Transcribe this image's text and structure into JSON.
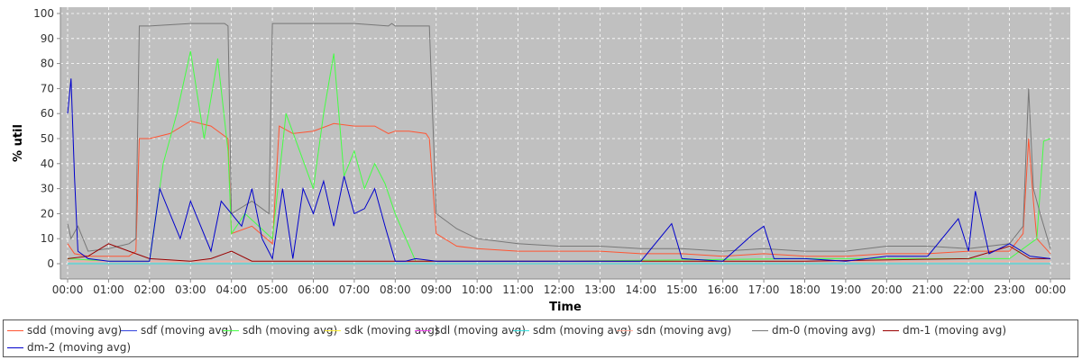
{
  "chart_data": {
    "type": "line",
    "title": "",
    "xlabel": "Time",
    "ylabel": "% util",
    "ylim": [
      0,
      100
    ],
    "xlim": [
      "00:00",
      "24:00"
    ],
    "grid": true,
    "legend_position": "bottom",
    "y_ticks": [
      "0",
      "10",
      "20",
      "30",
      "40",
      "50",
      "60",
      "70",
      "80",
      "90",
      "100"
    ],
    "x_ticks": [
      "00:00",
      "01:00",
      "02:00",
      "03:00",
      "04:00",
      "05:00",
      "06:00",
      "07:00",
      "08:00",
      "09:00",
      "10:00",
      "11:00",
      "12:00",
      "13:00",
      "14:00",
      "15:00",
      "16:00",
      "17:00",
      "18:00",
      "19:00",
      "20:00",
      "21:00",
      "22:00",
      "23:00",
      "00:00"
    ],
    "series": [
      {
        "name": "sdd (moving avg)",
        "color": "#ff5533",
        "x": [
          "00:00",
          "00:10",
          "00:30",
          "01:00",
          "01:30",
          "01:40",
          "01:45",
          "02:00",
          "02:30",
          "03:00",
          "03:30",
          "03:55",
          "04:00",
          "04:30",
          "05:00",
          "05:10",
          "05:30",
          "06:00",
          "06:30",
          "07:00",
          "07:30",
          "07:50",
          "08:00",
          "08:20",
          "08:45",
          "08:50",
          "09:00",
          "09:30",
          "10:00",
          "11:00",
          "12:00",
          "13:00",
          "14:00",
          "15:00",
          "16:00",
          "17:00",
          "18:00",
          "19:00",
          "20:00",
          "21:00",
          "22:00",
          "23:00",
          "23:20",
          "23:28",
          "23:35",
          "23:40",
          "24:00"
        ],
        "values": [
          8,
          4,
          3,
          3,
          3,
          5,
          50,
          50,
          52,
          57,
          55,
          50,
          12,
          15,
          8,
          55,
          52,
          53,
          56,
          55,
          55,
          52,
          53,
          53,
          52,
          50,
          12,
          7,
          6,
          5,
          5,
          5,
          4,
          4,
          3,
          4,
          3,
          3,
          4,
          4,
          5,
          5,
          12,
          50,
          25,
          10,
          4
        ]
      },
      {
        "name": "sdf (moving avg)",
        "color": "#3344dd",
        "x": [
          "00:00",
          "24:00"
        ],
        "values": [
          0,
          0
        ]
      },
      {
        "name": "sdh (moving avg)",
        "color": "#44ff44",
        "x": [
          "00:00",
          "01:00",
          "02:00",
          "02:20",
          "02:40",
          "03:00",
          "03:20",
          "03:40",
          "03:55",
          "04:00",
          "04:20",
          "04:40",
          "05:00",
          "05:20",
          "05:40",
          "06:00",
          "06:15",
          "06:30",
          "06:45",
          "07:00",
          "07:15",
          "07:30",
          "07:45",
          "08:00",
          "08:30",
          "09:00",
          "12:00",
          "18:00",
          "22:00",
          "23:00",
          "23:40",
          "23:50",
          "24:00"
        ],
        "values": [
          2,
          1,
          1,
          40,
          60,
          85,
          50,
          82,
          45,
          12,
          20,
          15,
          10,
          60,
          45,
          30,
          60,
          84,
          35,
          45,
          30,
          40,
          32,
          20,
          1,
          1,
          1,
          2,
          2,
          2,
          10,
          49,
          50
        ]
      },
      {
        "name": "sdk (moving avg)",
        "color": "#ffee33",
        "x": [
          "00:00",
          "24:00"
        ],
        "values": [
          0,
          0
        ]
      },
      {
        "name": "sdl (moving avg)",
        "color": "#ee44ee",
        "x": [
          "00:00",
          "24:00"
        ],
        "values": [
          0,
          0
        ]
      },
      {
        "name": "sdm (moving avg)",
        "color": "#33dddd",
        "x": [
          "00:00",
          "24:00"
        ],
        "values": [
          0,
          0
        ]
      },
      {
        "name": "sdn (moving avg)",
        "color": "#ffaa99",
        "x": [
          "00:00",
          "24:00"
        ],
        "values": [
          1,
          1
        ]
      },
      {
        "name": "dm-0 (moving avg)",
        "color": "#777777",
        "x": [
          "00:00",
          "00:05",
          "00:15",
          "00:30",
          "01:00",
          "01:30",
          "01:40",
          "01:45",
          "02:00",
          "03:00",
          "03:50",
          "03:55",
          "04:00",
          "04:30",
          "04:55",
          "05:00",
          "06:00",
          "07:00",
          "07:50",
          "07:55",
          "08:00",
          "08:30",
          "08:50",
          "09:00",
          "09:30",
          "10:00",
          "11:00",
          "12:00",
          "13:00",
          "14:00",
          "15:00",
          "16:00",
          "17:00",
          "18:00",
          "19:00",
          "20:00",
          "21:00",
          "22:00",
          "23:00",
          "23:20",
          "23:28",
          "23:35",
          "23:45",
          "24:00"
        ],
        "values": [
          16,
          10,
          15,
          5,
          6,
          8,
          10,
          95,
          95,
          96,
          96,
          95,
          20,
          25,
          20,
          96,
          96,
          96,
          95,
          96,
          95,
          95,
          95,
          20,
          14,
          10,
          8,
          7,
          7,
          6,
          6,
          5,
          6,
          5,
          5,
          7,
          7,
          6,
          8,
          15,
          70,
          30,
          20,
          6
        ]
      },
      {
        "name": "dm-1 (moving avg)",
        "color": "#990000",
        "x": [
          "00:00",
          "00:30",
          "01:00",
          "01:30",
          "02:00",
          "03:00",
          "03:30",
          "04:00",
          "04:30",
          "05:00",
          "06:00",
          "07:00",
          "08:00",
          "08:30",
          "09:00",
          "12:00",
          "18:00",
          "22:00",
          "23:00",
          "23:30",
          "24:00"
        ],
        "values": [
          2,
          3,
          8,
          5,
          2,
          1,
          2,
          5,
          1,
          1,
          1,
          1,
          1,
          1,
          1,
          1,
          1,
          2,
          7,
          2,
          2
        ]
      },
      {
        "name": "dm-2 (moving avg)",
        "color": "#0000cc",
        "x": [
          "00:00",
          "00:05",
          "00:10",
          "00:15",
          "00:30",
          "01:00",
          "01:30",
          "02:00",
          "02:15",
          "02:30",
          "02:45",
          "03:00",
          "03:15",
          "03:30",
          "03:45",
          "04:00",
          "04:15",
          "04:30",
          "04:45",
          "05:00",
          "05:15",
          "05:30",
          "05:45",
          "06:00",
          "06:15",
          "06:30",
          "06:45",
          "07:00",
          "07:15",
          "07:30",
          "07:45",
          "08:00",
          "08:15",
          "08:30",
          "09:00",
          "10:00",
          "11:00",
          "12:00",
          "13:00",
          "14:00",
          "14:45",
          "15:00",
          "16:00",
          "16:45",
          "17:00",
          "17:15",
          "18:00",
          "19:00",
          "20:00",
          "21:00",
          "21:45",
          "22:00",
          "22:10",
          "22:30",
          "23:00",
          "23:30",
          "24:00"
        ],
        "values": [
          60,
          74,
          35,
          5,
          2,
          1,
          1,
          1,
          30,
          20,
          10,
          25,
          15,
          5,
          25,
          20,
          15,
          30,
          10,
          2,
          30,
          2,
          30,
          20,
          33,
          15,
          35,
          20,
          22,
          30,
          15,
          1,
          1,
          2,
          1,
          1,
          1,
          1,
          1,
          1,
          16,
          2,
          1,
          12,
          15,
          2,
          2,
          1,
          3,
          3,
          18,
          5,
          29,
          4,
          8,
          3,
          2
        ]
      }
    ]
  }
}
